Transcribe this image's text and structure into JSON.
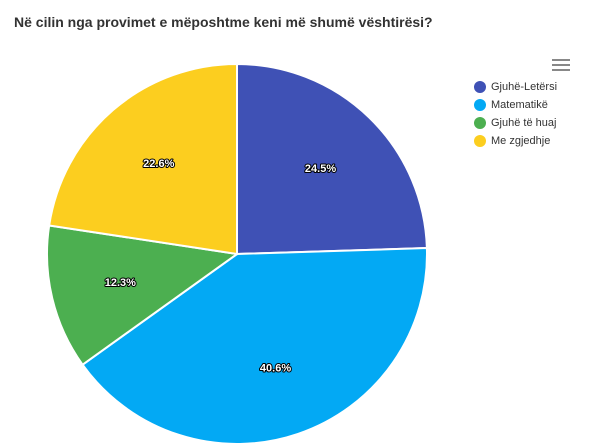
{
  "chart_data": {
    "type": "pie",
    "title": "Në cilin nga provimet e mëposhtme keni më shumë vështirësi?",
    "categories": [
      "Gjuhë-Letërsi",
      "Matematikë",
      "Gjuhë të huaj",
      "Me zgjedhje"
    ],
    "values": [
      24.5,
      40.6,
      12.3,
      22.6
    ],
    "labels": [
      "24.5%",
      "40.6%",
      "12.3%",
      "22.6%"
    ],
    "colors": [
      "#3f51b5",
      "#03a9f4",
      "#4caf50",
      "#fcce1f"
    ],
    "legend_position": "top-right"
  },
  "toolbar": {
    "menu_icon": "hamburger-menu-icon"
  }
}
